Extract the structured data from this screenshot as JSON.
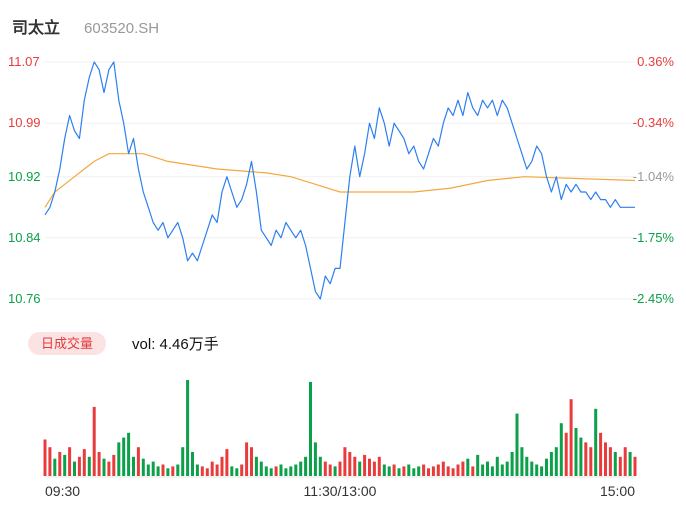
{
  "header": {
    "name": "司太立",
    "code": "603520.SH"
  },
  "colors": {
    "up": "#e83c3c",
    "down": "#0ca04a",
    "neutral": "#999999",
    "price_line": "#2d7ff0",
    "avg_line": "#f2a93b",
    "grid": "#f0f0f0",
    "vol_baseline": "#e6e6e6",
    "badge_bg": "#fbe3e3",
    "badge_text": "#e03c3c",
    "axis_time_text": "#333333"
  },
  "price_axis": [
    {
      "text": "11.07",
      "color": "up"
    },
    {
      "text": "10.99",
      "color": "up"
    },
    {
      "text": "10.92",
      "color": "down"
    },
    {
      "text": "10.84",
      "color": "down"
    },
    {
      "text": "10.76",
      "color": "down"
    }
  ],
  "pct_axis": [
    {
      "text": "0.36%",
      "color": "up"
    },
    {
      "text": "-0.34%",
      "color": "up"
    },
    {
      "text": "-1.04%",
      "color": "neutral"
    },
    {
      "text": "-1.75%",
      "color": "down"
    },
    {
      "text": "-2.45%",
      "color": "down"
    }
  ],
  "volume_header": {
    "badge": "日成交量",
    "vol_text": "vol: 4.46万手"
  },
  "time_axis": [
    "09:30",
    "11:30/13:00",
    "15:00"
  ],
  "chart_data": {
    "type": "line",
    "title": "司太立 603520.SH 分时图 (intraday price/avg with volume)",
    "x_minutes_total": 240,
    "ylim": [
      10.76,
      11.07
    ],
    "prev_close": 11.03,
    "price_levels": [
      11.07,
      10.99,
      10.92,
      10.84,
      10.76
    ],
    "pct_levels": [
      0.36,
      -0.34,
      -1.04,
      -1.75,
      -2.45
    ],
    "legend_position": "none",
    "grid": true,
    "series": [
      {
        "name": "price",
        "sample_minutes": 2,
        "values": [
          10.87,
          10.88,
          10.9,
          10.93,
          10.97,
          11.0,
          10.98,
          10.97,
          11.02,
          11.05,
          11.07,
          11.06,
          11.03,
          11.06,
          11.07,
          11.02,
          10.99,
          10.95,
          10.97,
          10.93,
          10.9,
          10.88,
          10.86,
          10.85,
          10.86,
          10.84,
          10.85,
          10.86,
          10.84,
          10.81,
          10.82,
          10.81,
          10.83,
          10.85,
          10.87,
          10.86,
          10.9,
          10.92,
          10.9,
          10.88,
          10.89,
          10.91,
          10.94,
          10.9,
          10.85,
          10.84,
          10.83,
          10.85,
          10.84,
          10.86,
          10.85,
          10.84,
          10.85,
          10.83,
          10.8,
          10.77,
          10.76,
          10.79,
          10.78,
          10.8,
          10.8,
          10.86,
          10.92,
          10.96,
          10.92,
          10.95,
          10.99,
          10.97,
          11.01,
          10.99,
          10.96,
          10.99,
          10.98,
          10.97,
          10.95,
          10.96,
          10.94,
          10.93,
          10.95,
          10.97,
          10.96,
          10.99,
          11.01,
          11.0,
          11.02,
          11.0,
          11.03,
          11.01,
          11.0,
          11.02,
          11.01,
          11.02,
          11.0,
          11.02,
          11.01,
          10.99,
          10.97,
          10.95,
          10.93,
          10.94,
          10.96,
          10.95,
          10.92,
          10.9,
          10.92,
          10.89,
          10.91,
          10.9,
          10.91,
          10.9,
          10.9,
          10.89,
          10.9,
          10.89,
          10.89,
          10.88,
          10.89,
          10.88,
          10.88,
          10.88,
          10.88
        ]
      },
      {
        "name": "avg",
        "points": [
          [
            0,
            10.88
          ],
          [
            4,
            10.9
          ],
          [
            8,
            10.91
          ],
          [
            12,
            10.92
          ],
          [
            16,
            10.93
          ],
          [
            20,
            10.94
          ],
          [
            26,
            10.95
          ],
          [
            40,
            10.95
          ],
          [
            50,
            10.94
          ],
          [
            70,
            10.93
          ],
          [
            90,
            10.925
          ],
          [
            100,
            10.92
          ],
          [
            110,
            10.91
          ],
          [
            120,
            10.9
          ],
          [
            150,
            10.9
          ],
          [
            165,
            10.905
          ],
          [
            180,
            10.915
          ],
          [
            195,
            10.92
          ],
          [
            240,
            10.915
          ]
        ]
      }
    ],
    "volume": {
      "label": "日成交量",
      "total_text": "vol: 4.46万手",
      "sample_minutes": 2,
      "values": [
        0.38,
        0.3,
        0.18,
        0.25,
        0.22,
        0.3,
        0.15,
        0.2,
        0.28,
        0.2,
        0.72,
        0.25,
        0.18,
        0.15,
        0.22,
        0.35,
        0.4,
        0.45,
        0.2,
        0.3,
        0.18,
        0.12,
        0.15,
        0.1,
        0.12,
        0.08,
        0.1,
        0.12,
        0.3,
        1.0,
        0.25,
        0.12,
        0.1,
        0.08,
        0.15,
        0.12,
        0.2,
        0.28,
        0.1,
        0.08,
        0.12,
        0.35,
        0.3,
        0.2,
        0.15,
        0.1,
        0.08,
        0.1,
        0.12,
        0.08,
        0.1,
        0.12,
        0.15,
        0.2,
        0.98,
        0.35,
        0.2,
        0.15,
        0.12,
        0.1,
        0.15,
        0.3,
        0.25,
        0.2,
        0.15,
        0.22,
        0.18,
        0.15,
        0.2,
        0.12,
        0.1,
        0.12,
        0.08,
        0.1,
        0.12,
        0.08,
        0.1,
        0.12,
        0.08,
        0.1,
        0.12,
        0.15,
        0.1,
        0.08,
        0.12,
        0.15,
        0.18,
        0.1,
        0.22,
        0.12,
        0.15,
        0.1,
        0.2,
        0.12,
        0.15,
        0.25,
        0.65,
        0.3,
        0.2,
        0.15,
        0.12,
        0.1,
        0.18,
        0.25,
        0.3,
        0.55,
        0.45,
        0.8,
        0.5,
        0.4,
        0.35,
        0.3,
        0.7,
        0.45,
        0.35,
        0.3,
        0.25,
        0.2,
        0.3,
        0.25,
        0.2
      ],
      "colors": "rrgrgrgrrgrrgrrggggrggggrgrgggggrrrrrrggrrrggggrgggggggggrrgrrrrgrrrrggrgrgggrrrrrrrrrgrggggggggggggggggggrrggrrgrrrgrrgrrg"
    }
  }
}
